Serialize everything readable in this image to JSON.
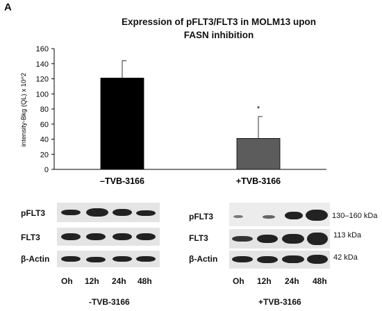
{
  "panel_letter": "A",
  "chart_data": {
    "type": "bar",
    "title": "Expression of pFLT3/FLT3 in MOLM13 upon FASN inhibition",
    "title_lines": [
      "Expression of pFLT3/FLT3 in MOLM13 upon",
      "FASN inhibition"
    ],
    "xlabel": "",
    "ylabel": "intensity-Bkg (QL) x 10^2",
    "categories": [
      "–TVB-3166",
      "+TVB-3166"
    ],
    "values": [
      121,
      41
    ],
    "errors": [
      23,
      29
    ],
    "bar_colors": [
      "#000000",
      "#5c5c5c"
    ],
    "significance": [
      "",
      "*"
    ],
    "ylim": [
      0,
      160
    ],
    "yticks": [
      0,
      20,
      40,
      60,
      80,
      100,
      120,
      140,
      160
    ],
    "grid": false,
    "legend": "none"
  },
  "blots": {
    "left": {
      "rows": [
        "pFLT3",
        "FLT3",
        "β-Actin"
      ],
      "times": [
        "Oh",
        "12h",
        "24h",
        "48h"
      ],
      "condition": "-TVB-3166"
    },
    "right": {
      "rows": [
        "pFLT3",
        "FLT3",
        "β-Actin"
      ],
      "kda": [
        "130–160 kDa",
        "113 kDa",
        "42 kDa"
      ],
      "times": [
        "Oh",
        "12h",
        "24h",
        "48h"
      ],
      "condition": "+TVB-3166"
    }
  }
}
